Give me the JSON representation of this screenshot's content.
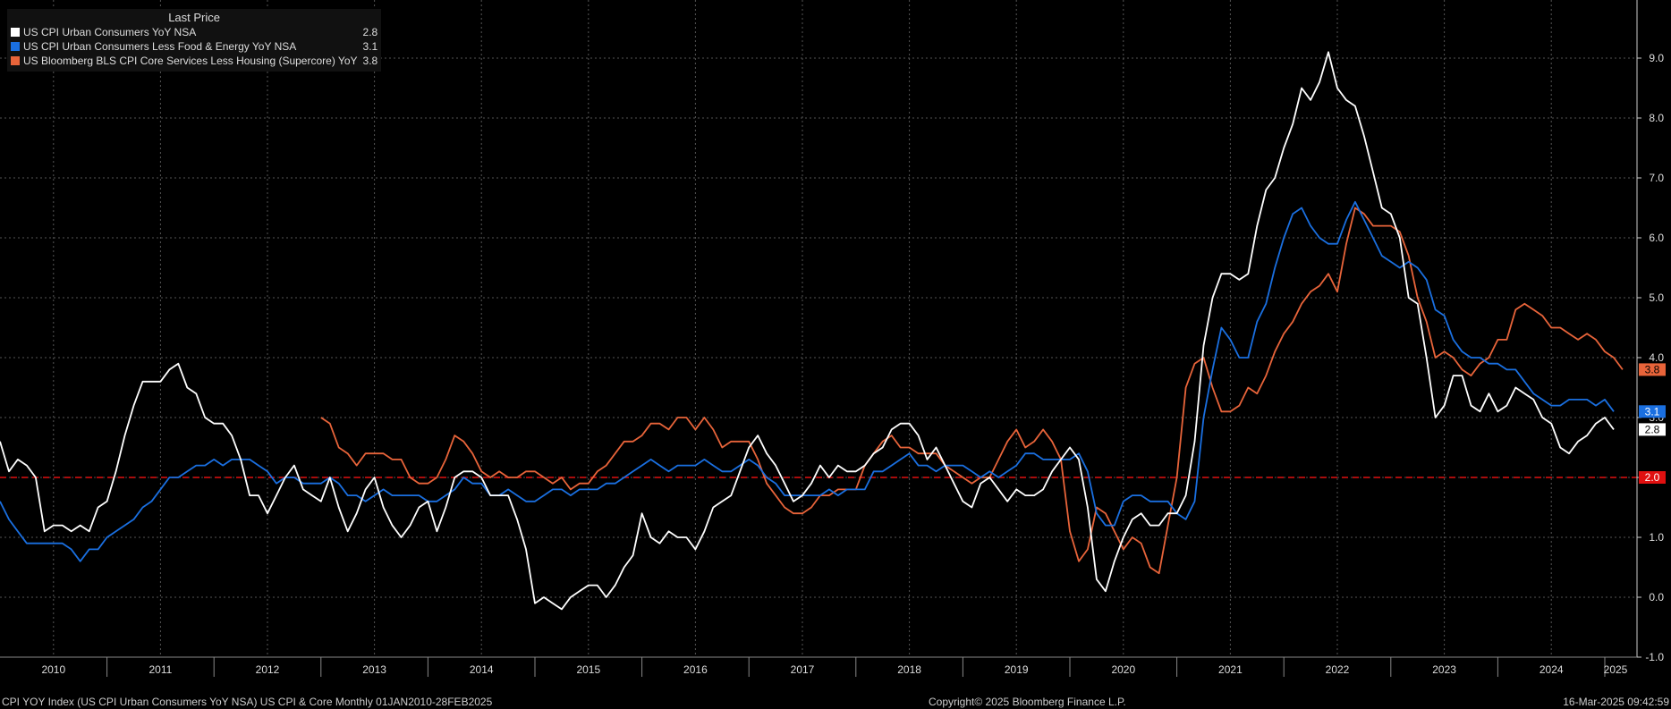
{
  "legend": {
    "header": "Last Price",
    "items": [
      {
        "name": "US CPI Urban Consumers YoY NSA",
        "value": "2.8",
        "color": "#ffffff"
      },
      {
        "name": "US CPI Urban Consumers Less Food & Energy YoY NSA",
        "value": "3.1",
        "color": "#1a6fe0"
      },
      {
        "name": "US Bloomberg BLS CPI Core Services Less Housing (Supercore) YoY",
        "value": "3.8",
        "color": "#e8643a"
      }
    ]
  },
  "footer": {
    "left": "CPI YOY Index (US CPI Urban Consumers YoY NSA) US CPI & Core  Monthly 01JAN2010-28FEB2025",
    "center": "Copyright© 2025 Bloomberg Finance L.P.",
    "right": "16-Mar-2025 09:42:59"
  },
  "chart_data": {
    "type": "line",
    "x_range": [
      "2010-01",
      "2025-02"
    ],
    "ylim": [
      -1.0,
      9.0
    ],
    "y_ticks": [
      "-1.0",
      "0.0",
      "1.0",
      "2.0",
      "3.0",
      "4.0",
      "5.0",
      "6.0",
      "7.0",
      "8.0",
      "9.0"
    ],
    "x_ticks": [
      "2010",
      "2011",
      "2012",
      "2013",
      "2014",
      "2015",
      "2016",
      "2017",
      "2018",
      "2019",
      "2020",
      "2021",
      "2022",
      "2023",
      "2024",
      "2025"
    ],
    "grid": true,
    "legend_position": "top-left",
    "reference_line": {
      "value": 2.0,
      "label": "2.0",
      "color": "#e01010",
      "style": "dashed"
    },
    "series": [
      {
        "name": "US CPI Urban Consumers YoY NSA",
        "color": "#ffffff",
        "start": "2010-01",
        "values": [
          2.6,
          2.1,
          2.3,
          2.2,
          2.0,
          1.1,
          1.2,
          1.2,
          1.1,
          1.2,
          1.1,
          1.5,
          1.6,
          2.1,
          2.7,
          3.2,
          3.6,
          3.6,
          3.6,
          3.8,
          3.9,
          3.5,
          3.4,
          3.0,
          2.9,
          2.9,
          2.7,
          2.3,
          1.7,
          1.7,
          1.4,
          1.7,
          2.0,
          2.2,
          1.8,
          1.7,
          1.6,
          2.0,
          1.5,
          1.1,
          1.4,
          1.8,
          2.0,
          1.5,
          1.2,
          1.0,
          1.2,
          1.5,
          1.6,
          1.1,
          1.5,
          2.0,
          2.1,
          2.1,
          2.0,
          1.7,
          1.7,
          1.7,
          1.3,
          0.8,
          -0.1,
          0.0,
          -0.1,
          -0.2,
          0.0,
          0.1,
          0.2,
          0.2,
          0.0,
          0.2,
          0.5,
          0.7,
          1.4,
          1.0,
          0.9,
          1.1,
          1.0,
          1.0,
          0.8,
          1.1,
          1.5,
          1.6,
          1.7,
          2.1,
          2.5,
          2.7,
          2.4,
          2.2,
          1.9,
          1.6,
          1.7,
          1.9,
          2.2,
          2.0,
          2.2,
          2.1,
          2.1,
          2.2,
          2.4,
          2.5,
          2.8,
          2.9,
          2.9,
          2.7,
          2.3,
          2.5,
          2.2,
          1.9,
          1.6,
          1.5,
          1.9,
          2.0,
          1.8,
          1.6,
          1.8,
          1.7,
          1.7,
          1.8,
          2.1,
          2.3,
          2.5,
          2.3,
          1.5,
          0.3,
          0.1,
          0.6,
          1.0,
          1.3,
          1.4,
          1.2,
          1.2,
          1.4,
          1.4,
          1.7,
          2.6,
          4.2,
          5.0,
          5.4,
          5.4,
          5.3,
          5.4,
          6.2,
          6.8,
          7.0,
          7.5,
          7.9,
          8.5,
          8.3,
          8.6,
          9.1,
          8.5,
          8.3,
          8.2,
          7.7,
          7.1,
          6.5,
          6.4,
          6.0,
          5.0,
          4.9,
          4.0,
          3.0,
          3.2,
          3.7,
          3.7,
          3.2,
          3.1,
          3.4,
          3.1,
          3.2,
          3.5,
          3.4,
          3.3,
          3.0,
          2.9,
          2.5,
          2.4,
          2.6,
          2.7,
          2.9,
          3.0,
          2.8
        ]
      },
      {
        "name": "US CPI Urban Consumers Less Food & Energy YoY NSA",
        "color": "#1a6fe0",
        "start": "2010-01",
        "values": [
          1.6,
          1.3,
          1.1,
          0.9,
          0.9,
          0.9,
          0.9,
          0.9,
          0.8,
          0.6,
          0.8,
          0.8,
          1.0,
          1.1,
          1.2,
          1.3,
          1.5,
          1.6,
          1.8,
          2.0,
          2.0,
          2.1,
          2.2,
          2.2,
          2.3,
          2.2,
          2.3,
          2.3,
          2.3,
          2.2,
          2.1,
          1.9,
          2.0,
          2.0,
          1.9,
          1.9,
          1.9,
          2.0,
          1.9,
          1.7,
          1.7,
          1.6,
          1.7,
          1.8,
          1.7,
          1.7,
          1.7,
          1.7,
          1.6,
          1.6,
          1.7,
          1.8,
          2.0,
          1.9,
          1.9,
          1.7,
          1.7,
          1.8,
          1.7,
          1.6,
          1.6,
          1.7,
          1.8,
          1.8,
          1.7,
          1.8,
          1.8,
          1.8,
          1.9,
          1.9,
          2.0,
          2.1,
          2.2,
          2.3,
          2.2,
          2.1,
          2.2,
          2.2,
          2.2,
          2.3,
          2.2,
          2.1,
          2.1,
          2.2,
          2.3,
          2.2,
          2.0,
          1.9,
          1.7,
          1.7,
          1.7,
          1.7,
          1.7,
          1.8,
          1.7,
          1.8,
          1.8,
          1.8,
          2.1,
          2.1,
          2.2,
          2.3,
          2.4,
          2.2,
          2.2,
          2.1,
          2.2,
          2.2,
          2.2,
          2.1,
          2.0,
          2.1,
          2.0,
          2.1,
          2.2,
          2.4,
          2.4,
          2.3,
          2.3,
          2.3,
          2.3,
          2.4,
          2.1,
          1.4,
          1.2,
          1.2,
          1.6,
          1.7,
          1.7,
          1.6,
          1.6,
          1.6,
          1.4,
          1.3,
          1.6,
          3.0,
          3.8,
          4.5,
          4.3,
          4.0,
          4.0,
          4.6,
          4.9,
          5.5,
          6.0,
          6.4,
          6.5,
          6.2,
          6.0,
          5.9,
          5.9,
          6.3,
          6.6,
          6.3,
          6.0,
          5.7,
          5.6,
          5.5,
          5.6,
          5.5,
          5.3,
          4.8,
          4.7,
          4.3,
          4.1,
          4.0,
          4.0,
          3.9,
          3.9,
          3.8,
          3.8,
          3.6,
          3.4,
          3.3,
          3.2,
          3.2,
          3.3,
          3.3,
          3.3,
          3.2,
          3.3,
          3.1
        ]
      },
      {
        "name": "US Bloomberg BLS CPI Core Services Less Housing (Supercore) YoY",
        "color": "#e8643a",
        "start": "2013-01",
        "values": [
          3.0,
          2.9,
          2.5,
          2.4,
          2.2,
          2.4,
          2.4,
          2.4,
          2.3,
          2.3,
          2.0,
          1.9,
          1.9,
          2.0,
          2.3,
          2.7,
          2.6,
          2.4,
          2.1,
          2.0,
          2.1,
          2.0,
          2.0,
          2.1,
          2.1,
          2.0,
          1.9,
          2.0,
          1.8,
          1.9,
          1.9,
          2.1,
          2.2,
          2.4,
          2.6,
          2.6,
          2.7,
          2.9,
          2.9,
          2.8,
          3.0,
          3.0,
          2.8,
          3.0,
          2.8,
          2.5,
          2.6,
          2.6,
          2.6,
          2.3,
          1.9,
          1.7,
          1.5,
          1.4,
          1.4,
          1.5,
          1.7,
          1.7,
          1.8,
          1.8,
          1.8,
          2.2,
          2.4,
          2.6,
          2.7,
          2.5,
          2.5,
          2.4,
          2.4,
          2.4,
          2.2,
          2.1,
          2.0,
          1.9,
          2.0,
          2.0,
          2.3,
          2.6,
          2.8,
          2.5,
          2.6,
          2.8,
          2.6,
          2.3,
          1.1,
          0.6,
          0.8,
          1.5,
          1.4,
          1.1,
          0.8,
          1.0,
          0.9,
          0.5,
          0.4,
          1.2,
          2.0,
          3.5,
          3.9,
          4.0,
          3.5,
          3.1,
          3.1,
          3.2,
          3.5,
          3.4,
          3.7,
          4.1,
          4.4,
          4.6,
          4.9,
          5.1,
          5.2,
          5.4,
          5.1,
          5.9,
          6.5,
          6.4,
          6.2,
          6.2,
          6.2,
          6.1,
          5.7,
          5.0,
          4.6,
          4.0,
          4.1,
          4.0,
          3.8,
          3.7,
          3.9,
          4.0,
          4.3,
          4.3,
          4.8,
          4.9,
          4.8,
          4.7,
          4.5,
          4.5,
          4.4,
          4.3,
          4.4,
          4.3,
          4.1,
          4.0,
          3.8
        ]
      }
    ]
  }
}
